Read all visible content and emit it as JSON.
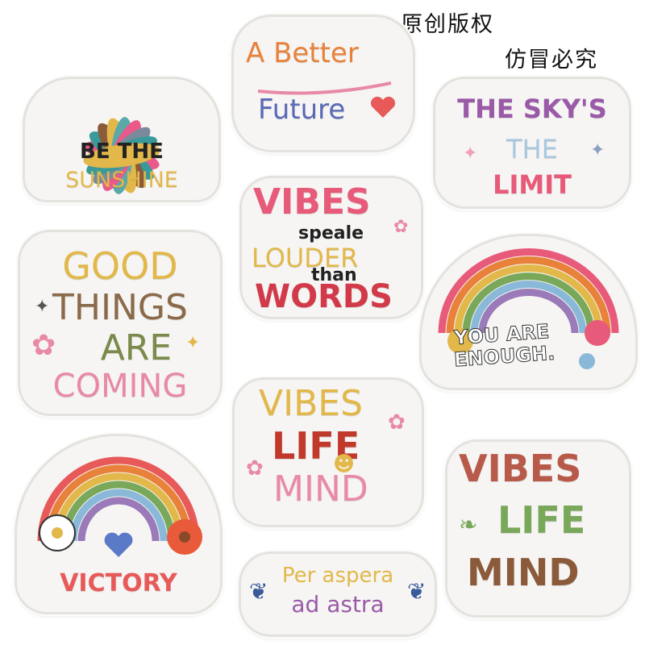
{
  "watermark": {
    "line1": "原创版权",
    "line2": "仿冒必究"
  },
  "patches": {
    "sunshine": {
      "line1": "BE THE",
      "line2": "SUNSHINE"
    },
    "better_future": {
      "line1": "A Better",
      "line2": "Future"
    },
    "sky_limit": {
      "line1": "THE SKY'S",
      "line2": "THE",
      "line3": "LIMIT"
    },
    "vibes_louder": {
      "line1": "VIBES",
      "line2": "speale",
      "line3": "LOUDER",
      "line4": "than",
      "line5": "WORDS"
    },
    "good_things": {
      "line1": "GOOD",
      "line2": "THINGS",
      "line3": "ARE",
      "line4": "COMING"
    },
    "rainbow_enough": {
      "line1": "YOU ARE",
      "line2": "ENOUGH."
    },
    "vibes_life_1": {
      "line1": "VIBES",
      "line2": "LIFE",
      "line3": "MIND"
    },
    "victory": {
      "line1": "VICTORY"
    },
    "per_aspera": {
      "line1": "Per aspera",
      "line2": "ad astra"
    },
    "vibes_life_2": {
      "line1": "VIBES",
      "line2": "LIFE",
      "line3": "MIND"
    }
  },
  "colors": {
    "gold": "#e2b84a",
    "brown": "#8a6a4a",
    "pink": "#e98aa5",
    "red": "#d23a4a",
    "purple": "#9a5aa8",
    "lightblue": "#9ab8d8",
    "green": "#7aa85a",
    "teal": "#3a9a9a",
    "orange": "#e8823a",
    "dark": "#333333"
  }
}
